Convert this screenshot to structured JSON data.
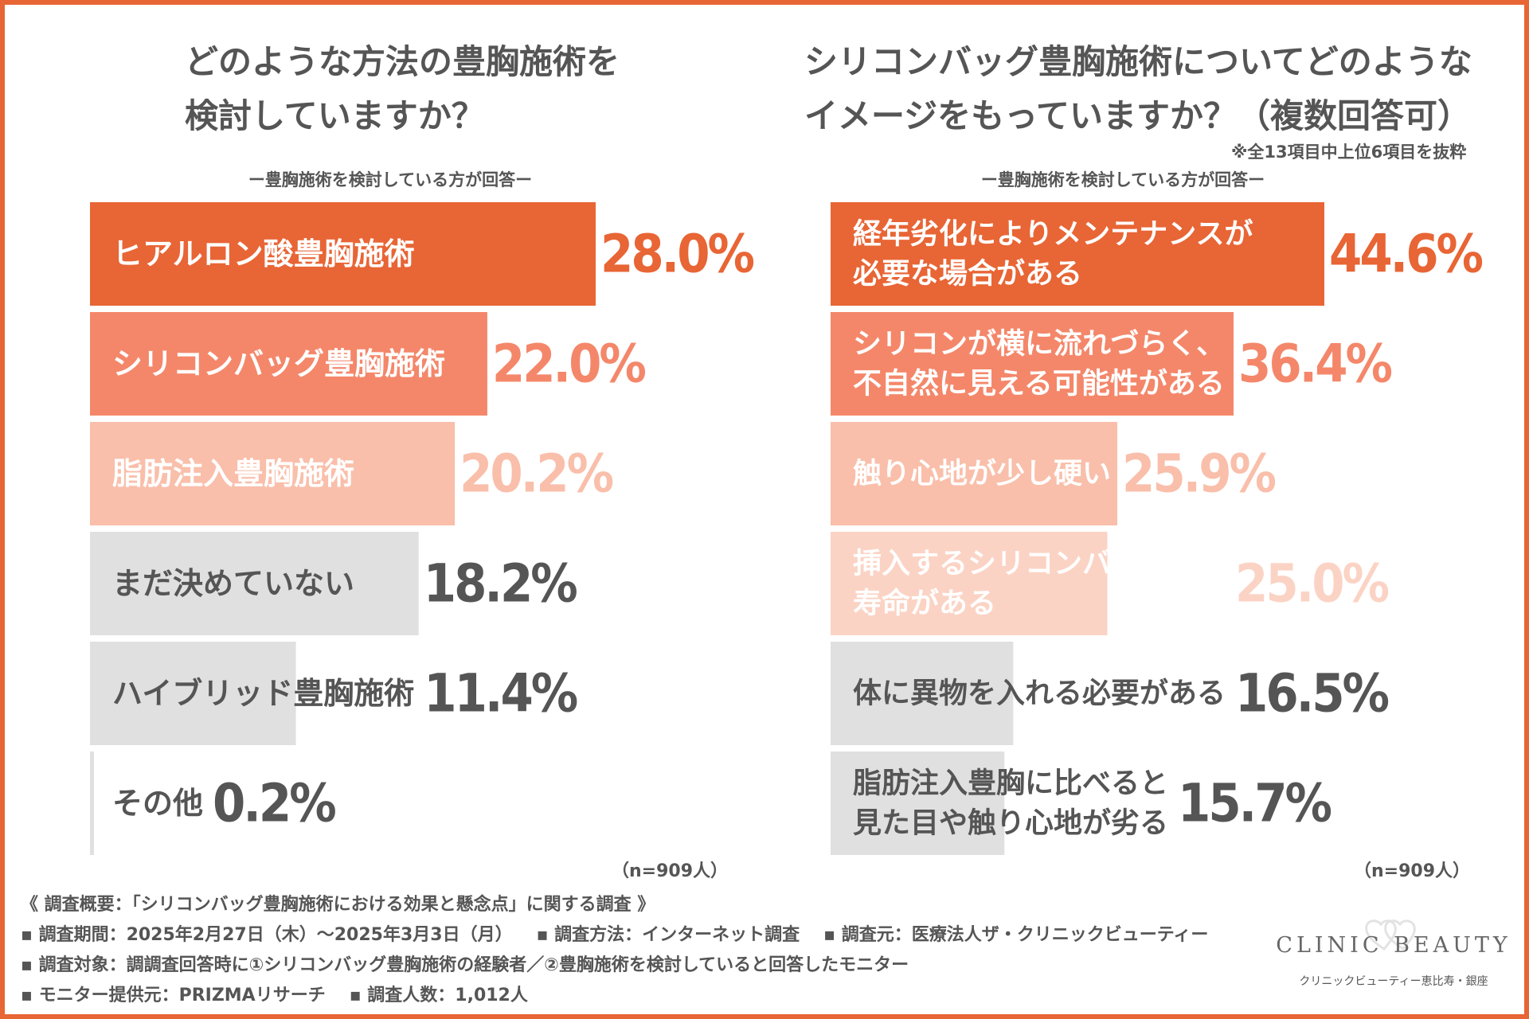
{
  "colors": {
    "frame": "#E86535",
    "text": "#555555",
    "rank1": "#E86535",
    "rank2": "#F4876A",
    "rank3": "#F9BFAA",
    "rank4": "#FBD3C4",
    "gray": "#E0E0E0",
    "gray_text": "#555555",
    "white": "#FFFFFF"
  },
  "left_chart": {
    "title_lines": [
      "どのような方法の豊胸施術を",
      "検討していますか？"
    ],
    "subtitle": "ー豊胸施術を検討している方が回答ー",
    "n_label": "（n=909人）"
  },
  "right_chart": {
    "title_lines": [
      "シリコンバッグ豊胸施術についてどのような",
      "イメージをもっていますか？（複数回答可）"
    ],
    "note": "※全13項目中上位6項目を抜粋",
    "subtitle": "ー豊胸施術を検討している方が回答ー",
    "n_label": "（n=909人）"
  },
  "chart_data": [
    {
      "type": "bar",
      "orientation": "horizontal",
      "title": "どのような方法の豊胸施術を検討していますか？",
      "subtitle": "ー豊胸施術を検討している方が回答ー",
      "unit": "%",
      "xlim": [
        0,
        30
      ],
      "categories": [
        [
          "ヒアルロン酸豊胸施術"
        ],
        [
          "シリコンバッグ豊胸施術"
        ],
        [
          "脂肪注入豊胸施術"
        ],
        [
          "まだ決めていない"
        ],
        [
          "ハイブリッド豊胸施術"
        ],
        [
          "その他"
        ]
      ],
      "values": [
        28.0,
        22.0,
        20.2,
        18.2,
        11.4,
        0.2
      ],
      "value_labels": [
        "28.0%",
        "22.0%",
        "20.2%",
        "18.2%",
        "11.4%",
        "0.2%"
      ],
      "bar_colors": [
        "#E86535",
        "#F4876A",
        "#F9BFAA",
        "#E0E0E0",
        "#E0E0E0",
        "#E0E0E0"
      ],
      "label_colors": [
        "#FFFFFF",
        "#FFFFFF",
        "#FFFFFF",
        "#555555",
        "#555555",
        "#555555"
      ],
      "value_colors": [
        "#E86535",
        "#F4876A",
        "#F9BFAA",
        "#555555",
        "#555555",
        "#555555"
      ],
      "n": "n=909人"
    },
    {
      "type": "bar",
      "orientation": "horizontal",
      "title": "シリコンバッグ豊胸施術についてどのようなイメージをもっていますか？（複数回答可）",
      "subtitle": "ー豊胸施術を検討している方が回答ー",
      "unit": "%",
      "xlim": [
        0,
        60
      ],
      "categories": [
        [
          "経年劣化によりメンテナンスが",
          "必要な場合がある"
        ],
        [
          "シリコンが横に流れづらく、",
          "不自然に見える可能性がある"
        ],
        [
          "触り心地が少し硬い"
        ],
        [
          "挿入するシリコンバッグには",
          "寿命がある"
        ],
        [
          "体に異物を入れる必要がある"
        ],
        [
          "脂肪注入豊胸に比べると",
          "見た目や触り心地が劣る"
        ]
      ],
      "values": [
        44.6,
        36.4,
        25.9,
        25.0,
        16.5,
        15.7
      ],
      "value_labels": [
        "44.6%",
        "36.4%",
        "25.9%",
        "25.0%",
        "16.5%",
        "15.7%"
      ],
      "bar_colors": [
        "#E86535",
        "#F4876A",
        "#F9BFAA",
        "#FBD3C4",
        "#E0E0E0",
        "#E0E0E0"
      ],
      "label_colors": [
        "#FFFFFF",
        "#FFFFFF",
        "#FFFFFF",
        "#FFFFFF",
        "#555555",
        "#555555"
      ],
      "value_colors": [
        "#E86535",
        "#F4876A",
        "#F9BFAA",
        "#FBD3C4",
        "#555555",
        "#555555"
      ],
      "n": "n=909人"
    }
  ],
  "footer": {
    "heading": "《 調査概要：「シリコンバッグ豊胸施術における効果と懸念点」に関する調査 》",
    "period": "▪ 調査期間：2025年2月27日（木）〜2025年3月3日（月）",
    "method": "▪ 調査方法：インターネット調査",
    "organizer": "▪ 調査元：医療法人ザ・クリニックビューティー",
    "target": "▪ 調査対象：調調査回答時に①シリコンバッグ豊胸施術の経験者／②豊胸施術を検討していると回答したモニター",
    "provider": "▪ モニター提供元：PRIZMAリサーチ",
    "respondents": "▪ 調査人数：1,012人"
  },
  "logo": {
    "name": "CLINIC BEAUTY",
    "sub": "クリニックビューティー恵比寿・銀座",
    "icon": "interlocking-hearts-icon"
  }
}
